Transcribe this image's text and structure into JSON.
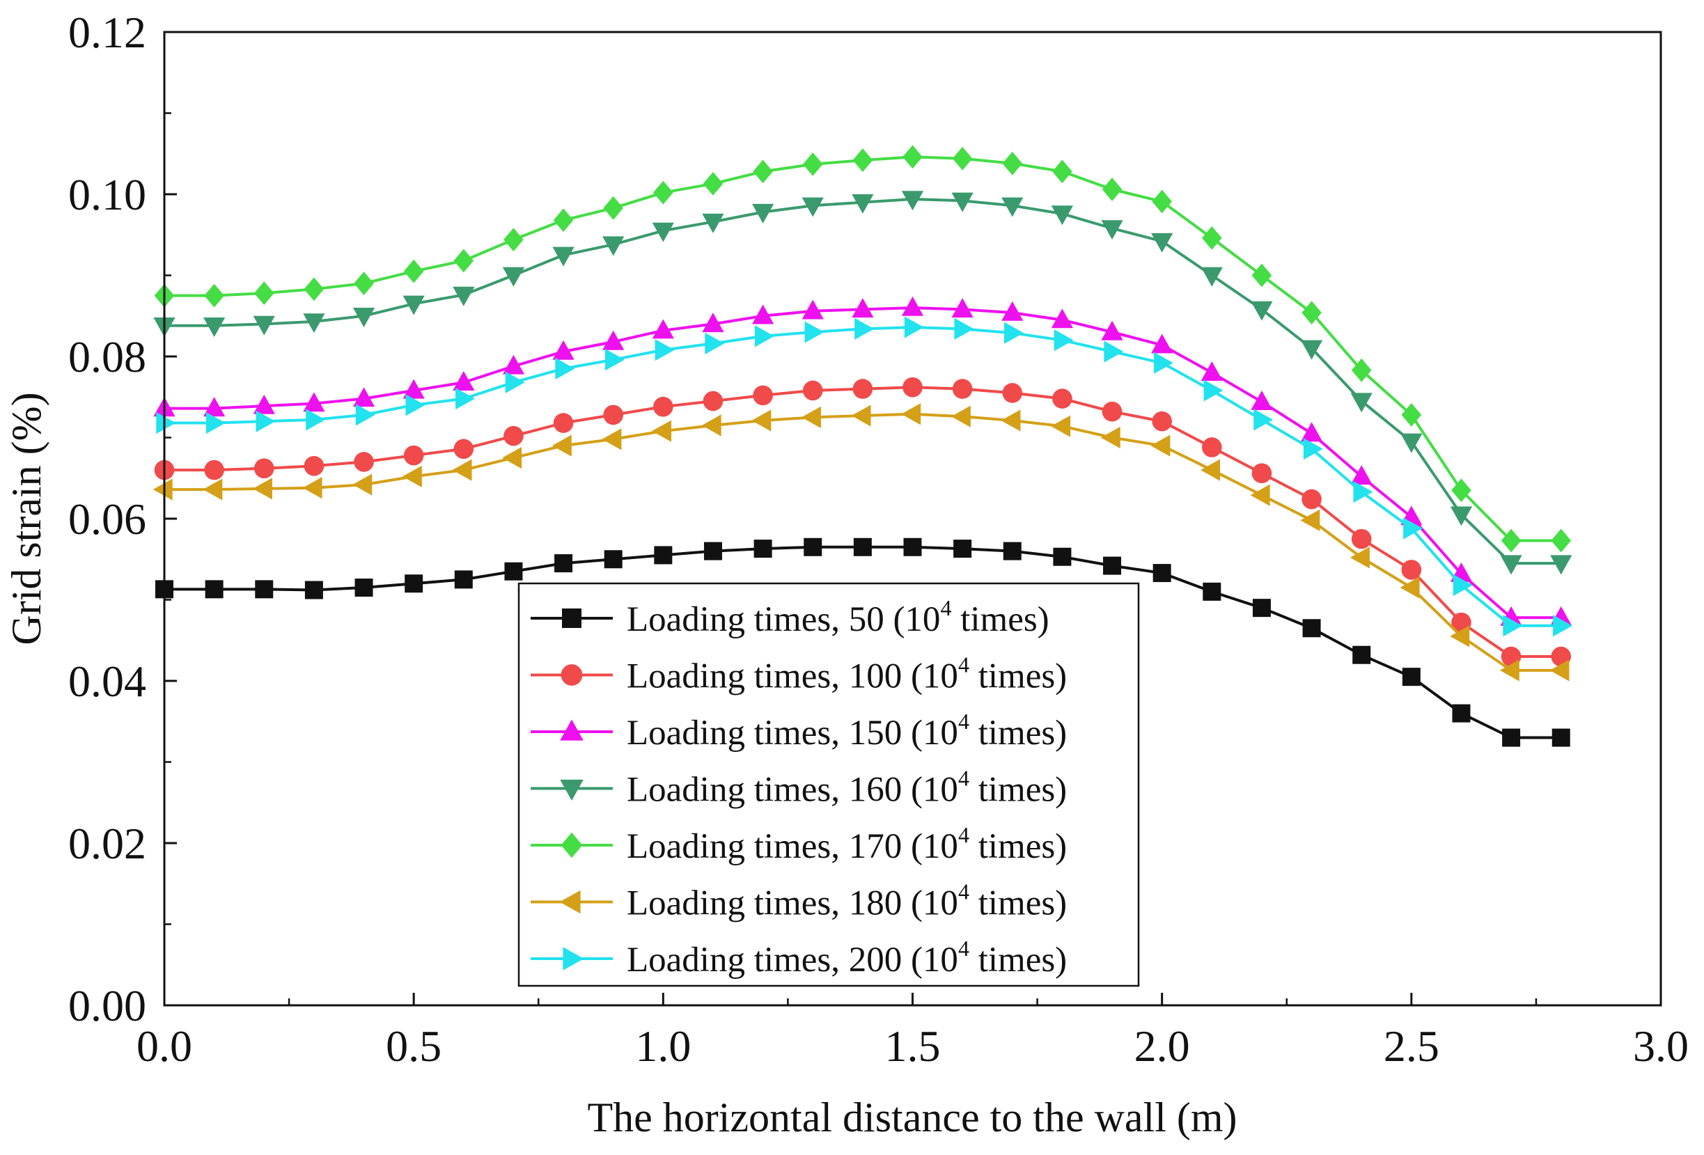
{
  "chart_data": {
    "type": "line",
    "xlabel": "The horizontal distance to the wall (m)",
    "ylabel": "Grid strain (%)",
    "xlim": [
      0,
      3.0
    ],
    "ylim": [
      0,
      0.12
    ],
    "x_ticks": [
      "0.0",
      "0.5",
      "1.0",
      "1.5",
      "2.0",
      "2.5",
      "3.0"
    ],
    "y_ticks": [
      "0.00",
      "0.02",
      "0.04",
      "0.06",
      "0.08",
      "0.10",
      "0.12"
    ],
    "legend_position": "center-bottom",
    "x": [
      0,
      0.1,
      0.2,
      0.3,
      0.4,
      0.5,
      0.6,
      0.7,
      0.8,
      0.9,
      1.0,
      1.1,
      1.2,
      1.3,
      1.4,
      1.5,
      1.6,
      1.7,
      1.8,
      1.9,
      2.0,
      2.1,
      2.2,
      2.3,
      2.4,
      2.5,
      2.6,
      2.7,
      2.8
    ],
    "series": [
      {
        "name": "50",
        "label_prefix": "Loading times, 50 (10",
        "label_sup": "4",
        "label_suffix": " times)",
        "color": "#111111",
        "marker": "square",
        "values": [
          0.0513,
          0.0513,
          0.0513,
          0.0512,
          0.0515,
          0.052,
          0.0525,
          0.0535,
          0.0545,
          0.055,
          0.0555,
          0.056,
          0.0563,
          0.0565,
          0.0565,
          0.0565,
          0.0563,
          0.056,
          0.0553,
          0.0542,
          0.0533,
          0.051,
          0.049,
          0.0465,
          0.0432,
          0.0405,
          0.036,
          0.033,
          0.033
        ]
      },
      {
        "name": "100",
        "label_prefix": "Loading times, 100 (10",
        "label_sup": "4",
        "label_suffix": " times)",
        "color": "#f04a4a",
        "marker": "circle",
        "values": [
          0.066,
          0.066,
          0.0662,
          0.0665,
          0.067,
          0.0678,
          0.0686,
          0.0702,
          0.0718,
          0.0728,
          0.0738,
          0.0745,
          0.0752,
          0.0758,
          0.076,
          0.0762,
          0.076,
          0.0755,
          0.0748,
          0.0732,
          0.072,
          0.0688,
          0.0656,
          0.0624,
          0.0575,
          0.0537,
          0.0472,
          0.043,
          0.043
        ]
      },
      {
        "name": "150",
        "label_prefix": "Loading times, 150 (10",
        "label_sup": "4",
        "label_suffix": " times)",
        "color": "#ee10ee",
        "marker": "triangle-up",
        "values": [
          0.0736,
          0.0736,
          0.0739,
          0.0742,
          0.0748,
          0.0758,
          0.0768,
          0.0788,
          0.0806,
          0.0818,
          0.0832,
          0.084,
          0.085,
          0.0856,
          0.0858,
          0.086,
          0.0858,
          0.0854,
          0.0845,
          0.083,
          0.0814,
          0.078,
          0.0744,
          0.0705,
          0.0652,
          0.0602,
          0.0532,
          0.0478,
          0.0478
        ]
      },
      {
        "name": "160",
        "label_prefix": "Loading times, 160 (10",
        "label_sup": "4",
        "label_suffix": " times)",
        "color": "#3a9a6e",
        "marker": "triangle-down",
        "values": [
          0.0838,
          0.0838,
          0.084,
          0.0843,
          0.085,
          0.0865,
          0.0876,
          0.09,
          0.0925,
          0.0938,
          0.0955,
          0.0966,
          0.0978,
          0.0986,
          0.099,
          0.0994,
          0.0992,
          0.0986,
          0.0976,
          0.0958,
          0.0942,
          0.09,
          0.0858,
          0.081,
          0.0745,
          0.0695,
          0.0605,
          0.0545,
          0.0545
        ]
      },
      {
        "name": "170",
        "label_prefix": "Loading times, 170 (10",
        "label_sup": "4",
        "label_suffix": " times)",
        "color": "#44dd44",
        "marker": "diamond",
        "values": [
          0.0875,
          0.0875,
          0.0878,
          0.0883,
          0.089,
          0.0905,
          0.0918,
          0.0944,
          0.0968,
          0.0983,
          0.1002,
          0.1013,
          0.1028,
          0.1037,
          0.1042,
          0.1046,
          0.1044,
          0.1038,
          0.1028,
          0.1006,
          0.0991,
          0.0946,
          0.09,
          0.0854,
          0.0783,
          0.0728,
          0.0635,
          0.0573,
          0.0573
        ]
      },
      {
        "name": "180",
        "label_prefix": "Loading times, 180 (10",
        "label_sup": "4",
        "label_suffix": " times)",
        "color": "#d4a017",
        "marker": "triangle-left",
        "values": [
          0.0636,
          0.0636,
          0.0637,
          0.0638,
          0.0642,
          0.0652,
          0.066,
          0.0675,
          0.069,
          0.0698,
          0.0708,
          0.0715,
          0.0721,
          0.0725,
          0.0727,
          0.0729,
          0.0726,
          0.0721,
          0.0714,
          0.07,
          0.069,
          0.066,
          0.0629,
          0.0598,
          0.0552,
          0.0515,
          0.0455,
          0.0413,
          0.0413
        ]
      },
      {
        "name": "200",
        "label_prefix": "Loading times, 200 (10",
        "label_sup": "4",
        "label_suffix": " times)",
        "color": "#22e2ee",
        "marker": "triangle-right",
        "values": [
          0.0718,
          0.0718,
          0.072,
          0.0722,
          0.0728,
          0.074,
          0.0748,
          0.0768,
          0.0785,
          0.0796,
          0.0808,
          0.0816,
          0.0825,
          0.083,
          0.0834,
          0.0836,
          0.0834,
          0.0829,
          0.082,
          0.0806,
          0.0792,
          0.0758,
          0.0722,
          0.0686,
          0.0633,
          0.0588,
          0.0518,
          0.0468,
          0.0468
        ]
      }
    ]
  }
}
